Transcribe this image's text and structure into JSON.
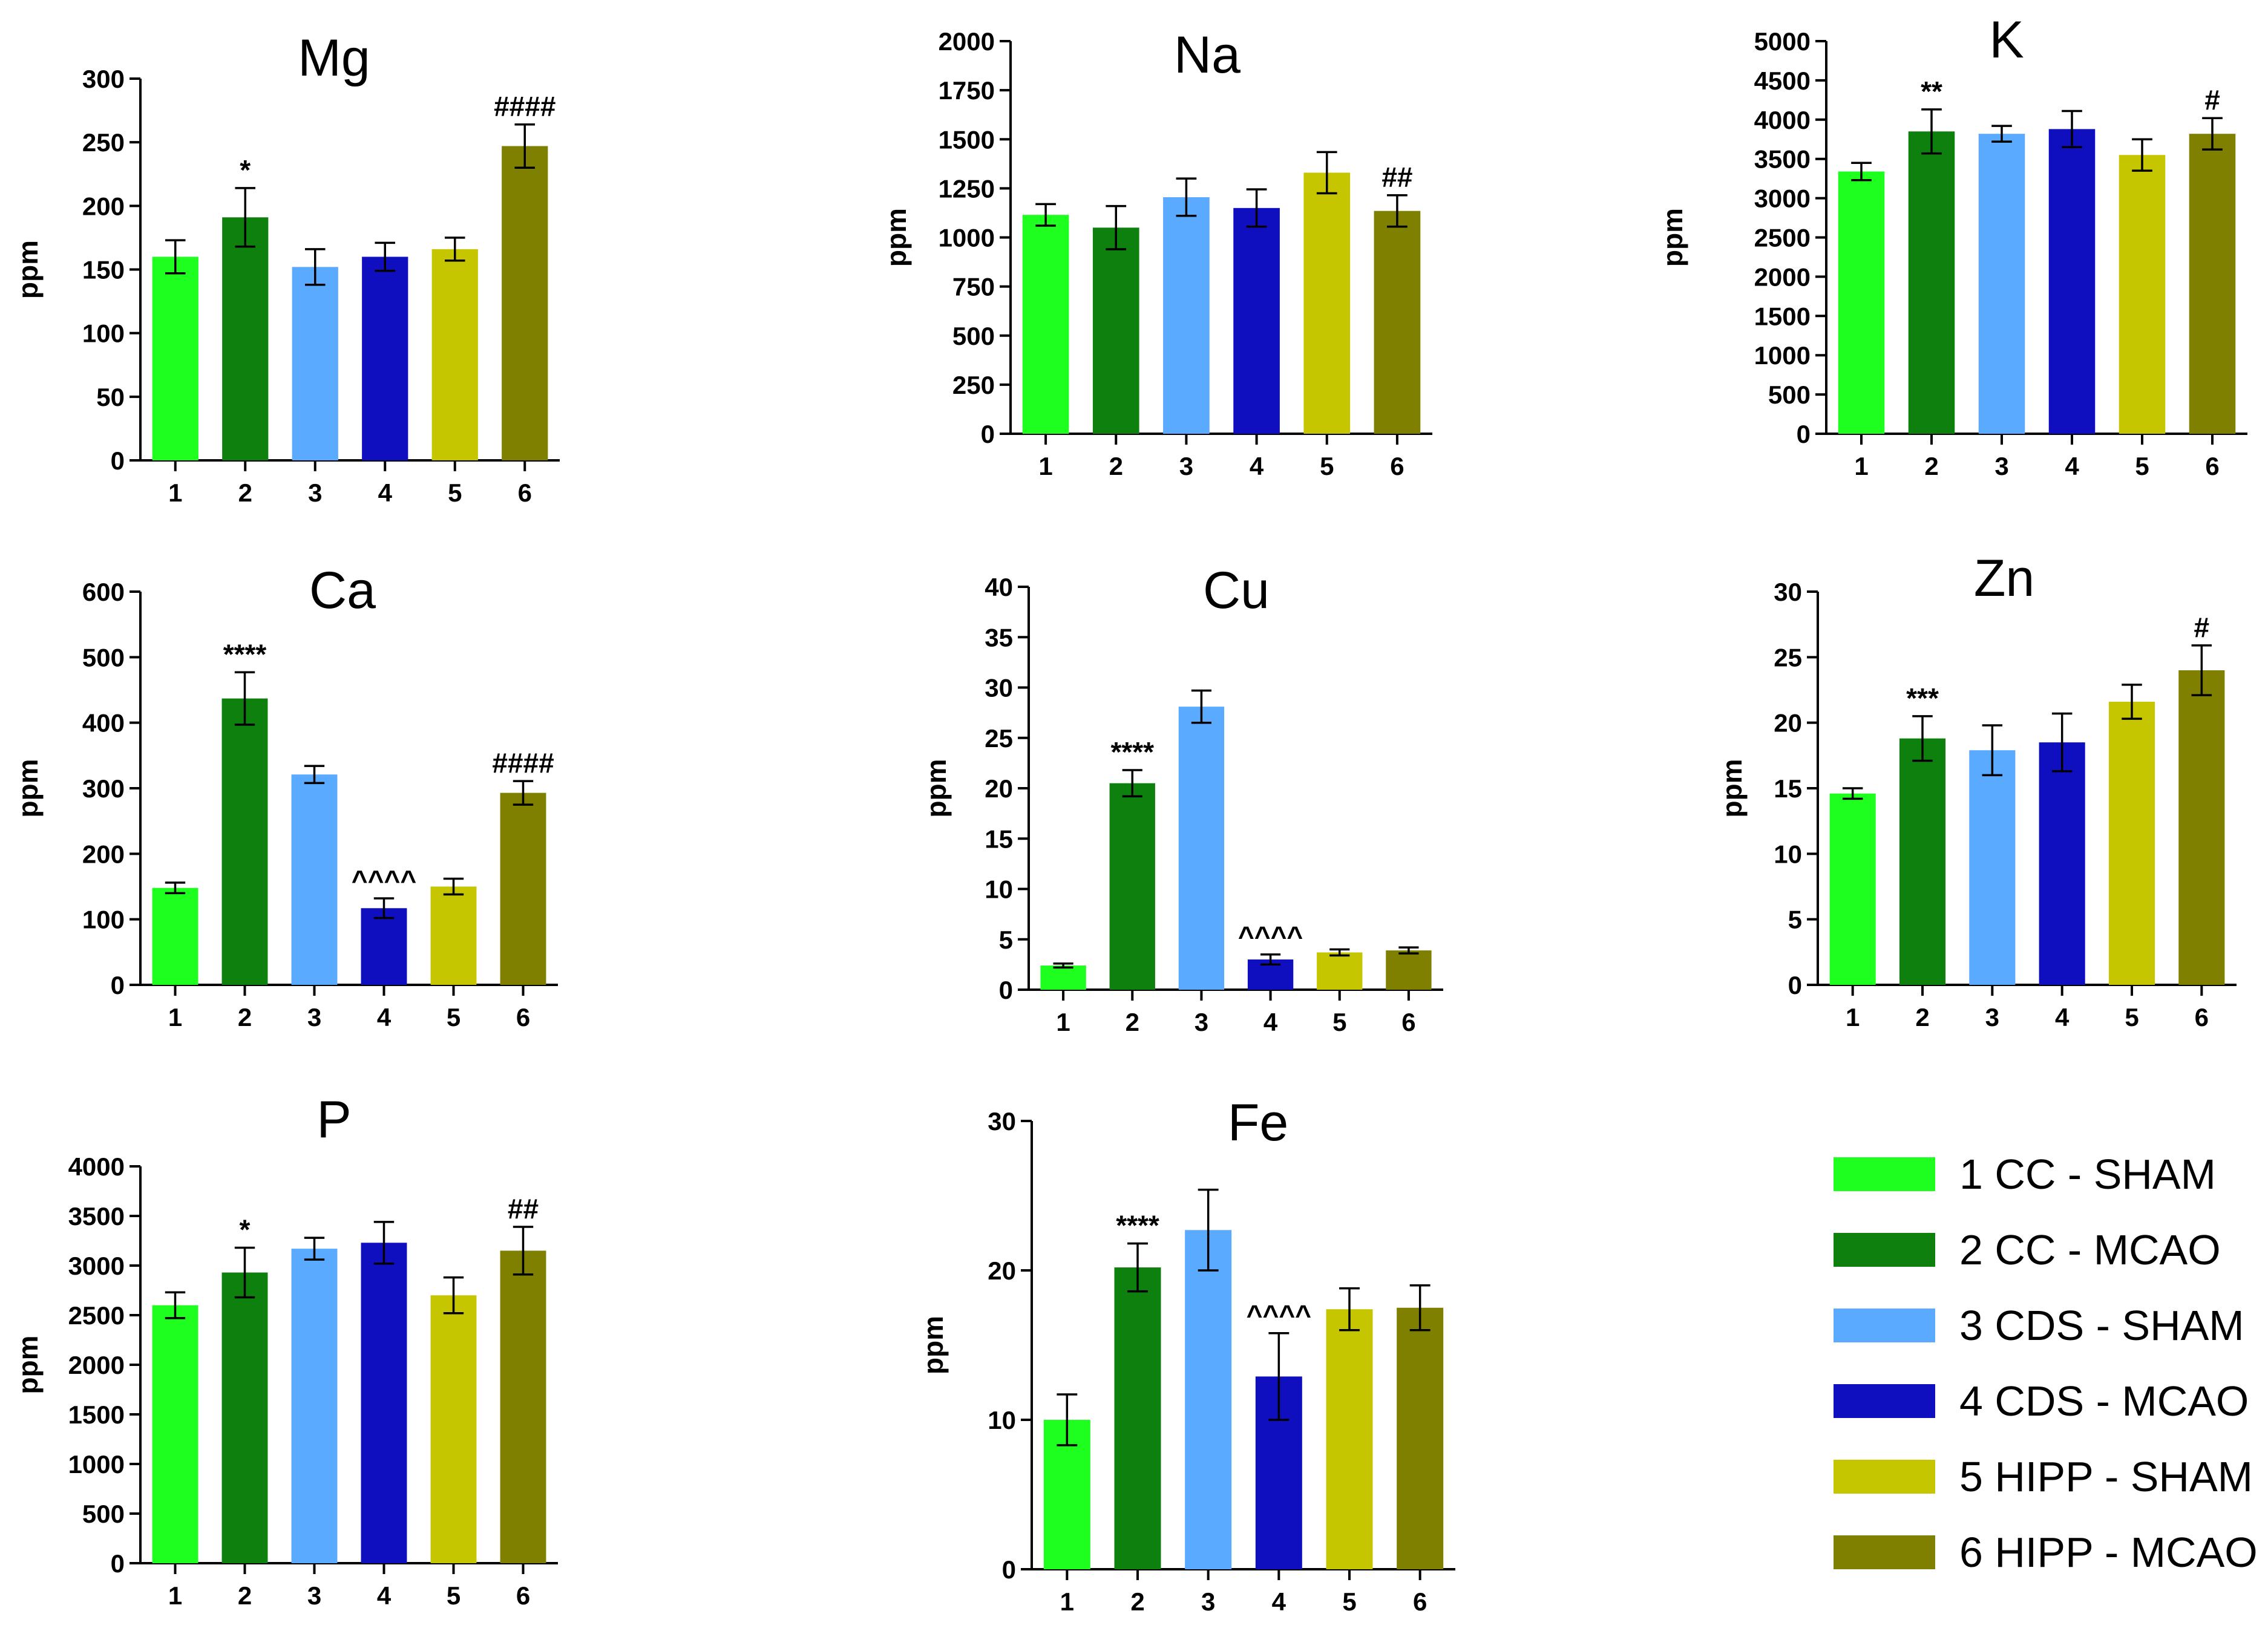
{
  "chart_data": [
    {
      "type": "bar",
      "title": "Mg",
      "ylabel": "ppm",
      "categories": [
        "1",
        "2",
        "3",
        "4",
        "5",
        "6"
      ],
      "values": [
        160,
        191,
        152,
        160,
        166,
        247
      ],
      "errors": [
        13,
        23,
        14,
        11,
        9,
        17
      ],
      "significance": [
        "",
        "*",
        "",
        "",
        "",
        "####"
      ],
      "ylim": [
        0,
        300
      ],
      "yticks": [
        0,
        50,
        100,
        150,
        200,
        250,
        300
      ]
    },
    {
      "type": "bar",
      "title": "Na",
      "ylabel": "ppm",
      "categories": [
        "1",
        "2",
        "3",
        "4",
        "5",
        "6"
      ],
      "values": [
        1115,
        1050,
        1205,
        1150,
        1330,
        1135
      ],
      "errors": [
        55,
        110,
        95,
        95,
        105,
        80
      ],
      "significance": [
        "",
        "",
        "",
        "",
        "",
        "##"
      ],
      "ylim": [
        0,
        2000
      ],
      "yticks": [
        0,
        250,
        500,
        750,
        1000,
        1250,
        1500,
        1750,
        2000
      ]
    },
    {
      "type": "bar",
      "title": "K",
      "ylabel": "ppm",
      "categories": [
        "1",
        "2",
        "3",
        "4",
        "5",
        "6"
      ],
      "values": [
        3340,
        3850,
        3820,
        3880,
        3550,
        3820
      ],
      "errors": [
        110,
        280,
        100,
        230,
        200,
        200
      ],
      "significance": [
        "",
        "**",
        "",
        "",
        "",
        "#"
      ],
      "ylim": [
        0,
        5000
      ],
      "yticks": [
        0,
        500,
        1000,
        1500,
        2000,
        2500,
        3000,
        3500,
        4000,
        4500,
        5000
      ]
    },
    {
      "type": "bar",
      "title": "Ca",
      "ylabel": "ppm",
      "categories": [
        "1",
        "2",
        "3",
        "4",
        "5",
        "6"
      ],
      "values": [
        148,
        437,
        321,
        117,
        150,
        293
      ],
      "errors": [
        8,
        40,
        13,
        15,
        12,
        18
      ],
      "significance": [
        "",
        "****",
        "",
        "^^^^",
        "",
        "####"
      ],
      "ylim": [
        0,
        600
      ],
      "yticks": [
        0,
        100,
        200,
        300,
        400,
        500,
        600
      ]
    },
    {
      "type": "bar",
      "title": "Cu",
      "ylabel": "ppm",
      "categories": [
        "1",
        "2",
        "3",
        "4",
        "5",
        "6"
      ],
      "values": [
        2.4,
        20.5,
        28.1,
        3.0,
        3.7,
        3.9
      ],
      "errors": [
        0.2,
        1.3,
        1.6,
        0.5,
        0.3,
        0.3
      ],
      "significance": [
        "",
        "****",
        "",
        "^^^^",
        "",
        ""
      ],
      "ylim": [
        0,
        40
      ],
      "yticks": [
        0,
        5,
        10,
        15,
        20,
        25,
        30,
        35,
        40
      ]
    },
    {
      "type": "bar",
      "title": "Zn",
      "ylabel": "ppm",
      "categories": [
        "1",
        "2",
        "3",
        "4",
        "5",
        "6"
      ],
      "values": [
        14.6,
        18.8,
        17.9,
        18.5,
        21.6,
        24.0
      ],
      "errors": [
        0.4,
        1.7,
        1.9,
        2.2,
        1.3,
        1.9
      ],
      "significance": [
        "",
        "***",
        "",
        "",
        "",
        "#"
      ],
      "ylim": [
        0,
        30
      ],
      "yticks": [
        0,
        5,
        10,
        15,
        20,
        25,
        30
      ]
    },
    {
      "type": "bar",
      "title": "P",
      "ylabel": "ppm",
      "categories": [
        "1",
        "2",
        "3",
        "4",
        "5",
        "6"
      ],
      "values": [
        2600,
        2930,
        3170,
        3230,
        2700,
        3150
      ],
      "errors": [
        130,
        250,
        110,
        210,
        180,
        240
      ],
      "significance": [
        "",
        "*",
        "",
        "",
        "",
        "##"
      ],
      "ylim": [
        0,
        4000
      ],
      "yticks": [
        0,
        500,
        1000,
        1500,
        2000,
        2500,
        3000,
        3500,
        4000
      ]
    },
    {
      "type": "bar",
      "title": "Fe",
      "ylabel": "ppm",
      "categories": [
        "1",
        "2",
        "3",
        "4",
        "5",
        "6"
      ],
      "values": [
        10.0,
        20.2,
        22.7,
        12.9,
        17.4,
        17.5
      ],
      "errors": [
        1.7,
        1.6,
        2.7,
        2.9,
        1.4,
        1.5
      ],
      "significance": [
        "",
        "****",
        "",
        "^^^^",
        "",
        ""
      ],
      "ylim": [
        0,
        30
      ],
      "yticks": [
        0,
        10,
        20,
        30
      ]
    }
  ],
  "legend": {
    "placement": "bottom-right",
    "items": [
      {
        "label": "1 CC - SHAM",
        "color": "#1fff1f"
      },
      {
        "label": "2 CC - MCAO",
        "color": "#0e800e"
      },
      {
        "label": "3 CDS - SHAM",
        "color": "#5aaaff"
      },
      {
        "label": "4 CDS - MCAO",
        "color": "#0f0fc0"
      },
      {
        "label": "5 HIPP - SHAM",
        "color": "#c6c600"
      },
      {
        "label": "6 HIPP - MCAO",
        "color": "#7f7f00"
      }
    ]
  }
}
